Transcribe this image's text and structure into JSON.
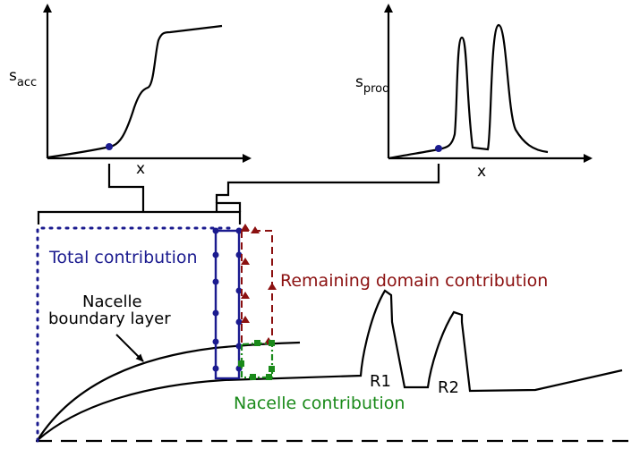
{
  "plot_left": {
    "y_label_main": "s",
    "y_label_sub": "acc",
    "x_label": "x"
  },
  "plot_right": {
    "y_label_main": "s",
    "y_label_sub": "prod",
    "x_label": "x"
  },
  "labels": {
    "total_contribution": "Total contribution",
    "remaining_contribution": "Remaining domain contribution",
    "nacelle_contribution": "Nacelle contribution",
    "nacelle_bl_line1": "Nacelle",
    "nacelle_bl_line2": "boundary layer",
    "r1": "R1",
    "r2": "R2"
  },
  "colors": {
    "total": "#0b0b8a",
    "remaining": "#8b1010",
    "nacelle": "#1a8a1a",
    "axis": "#000000"
  }
}
